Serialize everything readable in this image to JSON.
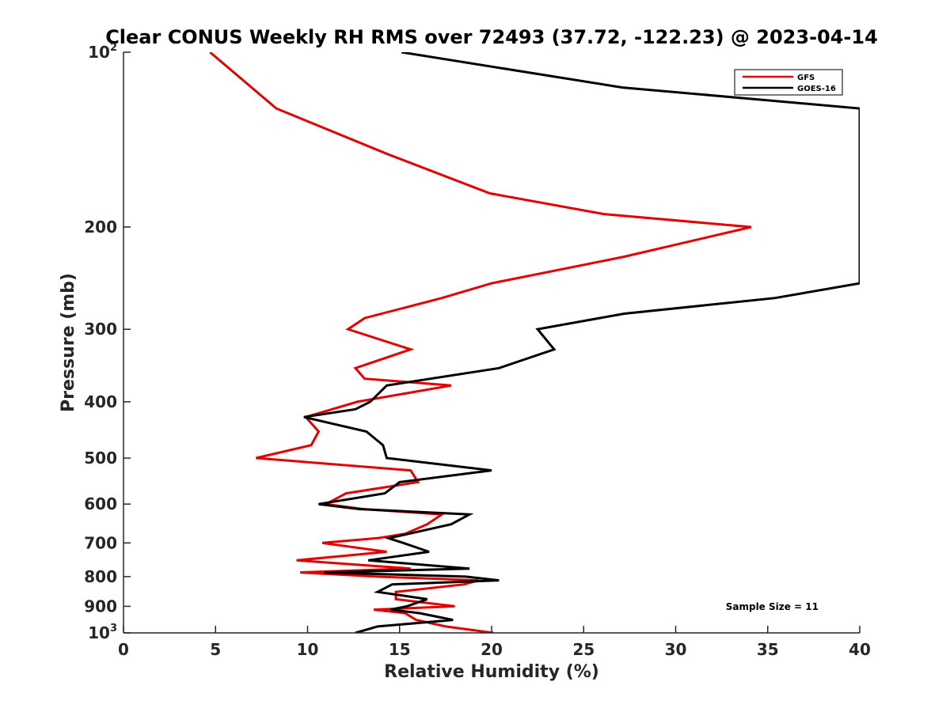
{
  "chart_data": {
    "type": "line",
    "title": "Clear CONUS Weekly RH RMS over 72493 (37.72, -122.23) @ 2023-04-14",
    "xlabel": "Relative Humidity (%)",
    "ylabel": "Pressure (mb)",
    "xlim": [
      0,
      40
    ],
    "ylim": [
      100,
      1000
    ],
    "yscale": "log",
    "y_reversed": true,
    "grid": false,
    "legend_position": "top-right",
    "x_ticks": [
      0,
      5,
      10,
      15,
      20,
      25,
      30,
      35,
      40
    ],
    "x_tick_labels": [
      "0",
      "5",
      "10",
      "15",
      "20",
      "25",
      "30",
      "35",
      "40"
    ],
    "y_ticks": [
      100,
      200,
      300,
      400,
      500,
      600,
      700,
      800,
      900,
      1000
    ],
    "y_tick_labels": [
      {
        "base": "10",
        "sup": "2"
      },
      {
        "base": "200",
        "sup": ""
      },
      {
        "base": "300",
        "sup": ""
      },
      {
        "base": "400",
        "sup": ""
      },
      {
        "base": "500",
        "sup": ""
      },
      {
        "base": "600",
        "sup": ""
      },
      {
        "base": "700",
        "sup": ""
      },
      {
        "base": "800",
        "sup": ""
      },
      {
        "base": "900",
        "sup": ""
      },
      {
        "base": "10",
        "sup": "3"
      }
    ],
    "series": [
      {
        "name": "GFS",
        "color": "#e00000",
        "points": [
          [
            4.7,
            100
          ],
          [
            8.3,
            125
          ],
          [
            14.4,
            150
          ],
          [
            19.9,
            175
          ],
          [
            26.1,
            190
          ],
          [
            34.1,
            200
          ],
          [
            27.2,
            225
          ],
          [
            20.0,
            250
          ],
          [
            17.3,
            265
          ],
          [
            13.1,
            287
          ],
          [
            12.2,
            300
          ],
          [
            15.6,
            325
          ],
          [
            12.6,
            350
          ],
          [
            13.1,
            365
          ],
          [
            17.8,
            375
          ],
          [
            12.7,
            400
          ],
          [
            9.9,
            425
          ],
          [
            10.6,
            450
          ],
          [
            10.2,
            475
          ],
          [
            7.2,
            500
          ],
          [
            15.6,
            525
          ],
          [
            16.0,
            550
          ],
          [
            12.1,
            575
          ],
          [
            11.0,
            600
          ],
          [
            13.0,
            612
          ],
          [
            17.3,
            625
          ],
          [
            16.5,
            650
          ],
          [
            15.3,
            675
          ],
          [
            13.8,
            687
          ],
          [
            10.8,
            700
          ],
          [
            14.3,
            725
          ],
          [
            9.4,
            750
          ],
          [
            15.6,
            775
          ],
          [
            9.6,
            787
          ],
          [
            13.8,
            800
          ],
          [
            19.3,
            812
          ],
          [
            18.5,
            825
          ],
          [
            14.8,
            850
          ],
          [
            14.8,
            875
          ],
          [
            18.0,
            900
          ],
          [
            13.6,
            912
          ],
          [
            15.3,
            925
          ],
          [
            15.9,
            950
          ],
          [
            17.5,
            975
          ],
          [
            20.1,
            1000
          ]
        ]
      },
      {
        "name": "GOES-16",
        "color": "#000000",
        "points": [
          [
            15.1,
            100
          ],
          [
            27.1,
            115
          ],
          [
            40.0,
            125
          ],
          [
            40.0,
            250
          ],
          [
            35.4,
            265
          ],
          [
            27.2,
            282
          ],
          [
            22.5,
            300
          ],
          [
            23.4,
            325
          ],
          [
            20.4,
            350
          ],
          [
            14.3,
            375
          ],
          [
            13.4,
            400
          ],
          [
            12.6,
            412
          ],
          [
            9.8,
            425
          ],
          [
            13.2,
            450
          ],
          [
            14.1,
            475
          ],
          [
            14.3,
            500
          ],
          [
            20.0,
            525
          ],
          [
            15.0,
            550
          ],
          [
            14.2,
            575
          ],
          [
            10.6,
            600
          ],
          [
            12.8,
            612
          ],
          [
            18.8,
            625
          ],
          [
            17.8,
            650
          ],
          [
            15.5,
            675
          ],
          [
            14.4,
            687
          ],
          [
            15.2,
            700
          ],
          [
            16.6,
            725
          ],
          [
            13.3,
            750
          ],
          [
            18.8,
            775
          ],
          [
            10.9,
            787
          ],
          [
            18.6,
            800
          ],
          [
            20.4,
            812
          ],
          [
            14.6,
            825
          ],
          [
            13.8,
            850
          ],
          [
            16.5,
            875
          ],
          [
            15.4,
            900
          ],
          [
            14.5,
            912
          ],
          [
            16.1,
            925
          ],
          [
            17.9,
            950
          ],
          [
            13.8,
            975
          ],
          [
            12.6,
            1000
          ]
        ]
      }
    ],
    "legend": [
      "GFS",
      "GOES-16"
    ],
    "annotation": "Sample Size = 11"
  }
}
